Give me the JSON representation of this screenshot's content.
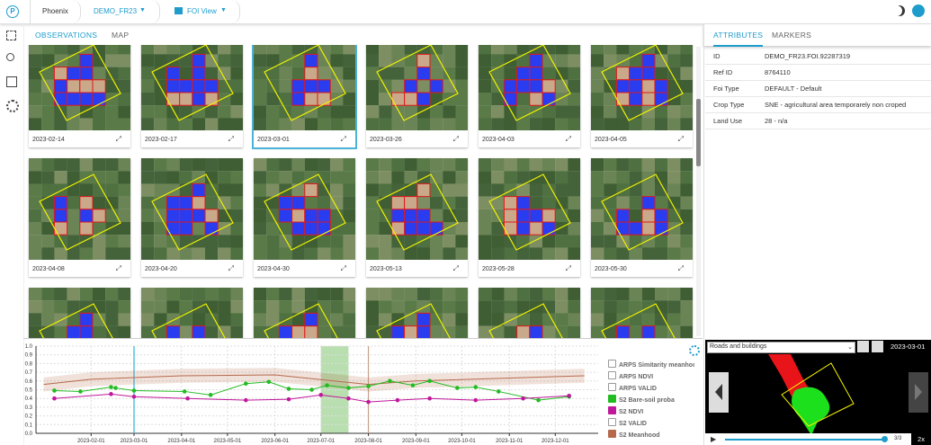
{
  "header": {
    "app": "Phoenix",
    "project": "DEMO_FR23",
    "view": "FOI View"
  },
  "tabs": {
    "left": [
      "OBSERVATIONS",
      "MAP"
    ],
    "right": [
      "ATTRIBUTES",
      "MARKERS"
    ]
  },
  "observations": [
    "2023-02-14",
    "2023-02-17",
    "2023-03-01",
    "2023-03-26",
    "2023-04-03",
    "2023-04-05",
    "2023-04-08",
    "2023-04-20",
    "2023-04-30",
    "2023-05-13",
    "2023-05-28",
    "2023-05-30"
  ],
  "attributes": [
    [
      "ID",
      "DEMO_FR23.FOI.92287319"
    ],
    [
      "Ref ID",
      "8764110"
    ],
    [
      "Foi Type",
      "DEFAULT - Default"
    ],
    [
      "Crop Type",
      "SNE - agricultural area temporarely non croped"
    ],
    [
      "Land Use",
      "28 - n/a"
    ]
  ],
  "chart_data": {
    "type": "line",
    "xlim": [
      "2022-12-27",
      "2023-12-29"
    ],
    "xticks": [
      "2023-02-01",
      "2023-03-01",
      "2023-04-01",
      "2023-05-01",
      "2023-06-01",
      "2023-07-01",
      "2023-08-01",
      "2023-09-01",
      "2023-10-01",
      "2023-11-01",
      "2023-12-01"
    ],
    "ylim": [
      0,
      1
    ],
    "yticks": [
      {
        "value": 0,
        "label": "0.0"
      },
      0.1,
      0.2,
      0.3,
      0.4,
      0.5,
      0.6,
      0.7,
      0.8,
      0.9,
      {
        "value": 1,
        "label": "1.0"
      }
    ],
    "grid": true,
    "highlight": {
      "from": "2023-07-01",
      "to": "2023-07-19",
      "color": "#b9dfb0"
    },
    "markers": [
      {
        "x": "2023-03-01",
        "color": "#29b6d8"
      },
      {
        "x": "2023-08-01",
        "color": "#c7a08a"
      }
    ],
    "series": [
      {
        "name": "S2 Meanhood",
        "color": "#b5694a",
        "x": [
          "2023-01-01",
          "2023-02-01",
          "2023-04-01",
          "2023-06-01",
          "2023-08-01",
          "2023-09-01",
          "2023-12-20"
        ],
        "values": [
          0.56,
          0.62,
          0.66,
          0.67,
          0.56,
          0.6,
          0.66
        ],
        "band_low": [
          0.48,
          0.54,
          0.58,
          0.59,
          0.48,
          0.52,
          0.58
        ],
        "band_high": [
          0.64,
          0.7,
          0.74,
          0.75,
          0.64,
          0.68,
          0.74
        ]
      },
      {
        "name": "S2 Bare-soil proba",
        "color": "#22bb22",
        "x": [
          "2023-01-08",
          "2023-01-25",
          "2023-02-14",
          "2023-02-17",
          "2023-03-01",
          "2023-04-03",
          "2023-04-20",
          "2023-05-13",
          "2023-05-28",
          "2023-06-10",
          "2023-06-25",
          "2023-07-05",
          "2023-07-19",
          "2023-08-01",
          "2023-08-15",
          "2023-08-30",
          "2023-09-10",
          "2023-09-28",
          "2023-10-10",
          "2023-10-25",
          "2023-11-20",
          "2023-12-10"
        ],
        "values": [
          0.49,
          0.48,
          0.53,
          0.52,
          0.49,
          0.48,
          0.44,
          0.57,
          0.59,
          0.51,
          0.5,
          0.55,
          0.52,
          0.54,
          0.6,
          0.55,
          0.6,
          0.52,
          0.53,
          0.48,
          0.38,
          0.42
        ]
      },
      {
        "name": "S2 NDVI",
        "color": "#c0179b",
        "x": [
          "2023-01-08",
          "2023-02-14",
          "2023-03-01",
          "2023-04-05",
          "2023-05-13",
          "2023-06-10",
          "2023-07-01",
          "2023-07-19",
          "2023-08-01",
          "2023-08-20",
          "2023-09-10",
          "2023-10-10",
          "2023-11-10",
          "2023-12-10"
        ],
        "values": [
          0.4,
          0.45,
          0.42,
          0.4,
          0.38,
          0.39,
          0.44,
          0.4,
          0.36,
          0.38,
          0.4,
          0.38,
          0.4,
          0.43
        ]
      }
    ],
    "legend_items": [
      {
        "name": "ARPS Simitarity meanhood",
        "checked": false
      },
      {
        "name": "ARPS NDVI",
        "checked": false
      },
      {
        "name": "ARPS VALID",
        "checked": false
      },
      {
        "name": "S2 Bare-soil proba",
        "checked": true,
        "color": "#22bb22"
      },
      {
        "name": "S2 NDVI",
        "checked": true,
        "color": "#c0179b"
      },
      {
        "name": "S2 VALID",
        "checked": false
      },
      {
        "name": "S2 Meanhood",
        "checked": true,
        "color": "#b5694a"
      }
    ]
  },
  "map_preview": {
    "layer": "Roads and buildings",
    "date": "2023-03-01",
    "frame": "3/3",
    "speed": "2x"
  }
}
